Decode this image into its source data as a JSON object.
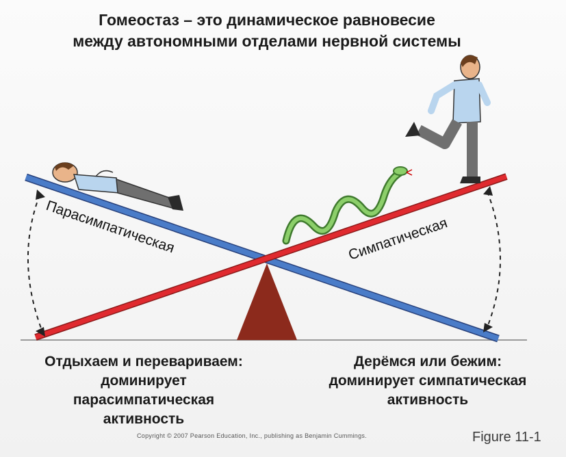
{
  "title": {
    "line1": "Гомеостаз – это динамическое равновесие",
    "line2": "между автономными отделами нервной системы"
  },
  "levers": {
    "parasympathetic_label": "Парасимпатическая",
    "sympathetic_label": "Симпатическая",
    "parasympathetic_color": "#3f6fb8",
    "sympathetic_color": "#d6252b",
    "fulcrum_color": "#8c2a1c"
  },
  "captions": {
    "left": [
      "Отдыхаем и перевариваем:",
      "доминирует",
      "парасимпатическая",
      "активность"
    ],
    "right": [
      "Дерёмся или бежим:",
      "доминирует симпатическая",
      "активность"
    ]
  },
  "footer": {
    "copyright": "Copyright © 2007 Pearson Education, Inc., publishing as Benjamin Cummings.",
    "figure": "Figure 11-1"
  }
}
